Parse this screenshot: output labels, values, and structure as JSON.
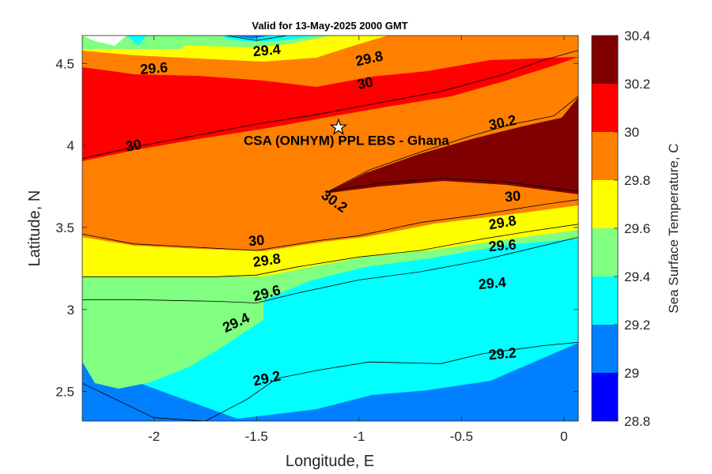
{
  "chart_data": {
    "type": "contour",
    "title": "Valid for 13-May-2025 2000 GMT",
    "xlabel": "Longitude, E",
    "ylabel": "Latitude, N",
    "xlim": [
      -2.35,
      0.07
    ],
    "ylim": [
      2.32,
      4.67
    ],
    "x_ticks": [
      -2,
      -1.5,
      -1,
      -0.5,
      0
    ],
    "x_tick_labels": [
      "-2",
      "-1.5",
      "-1",
      "-0.5",
      "0"
    ],
    "y_ticks": [
      2.5,
      3,
      3.5,
      4,
      4.5
    ],
    "y_tick_labels": [
      "2.5",
      "3",
      "3.5",
      "4",
      "4.5"
    ],
    "colorbar": {
      "label": "Sea Surface Temperature, C",
      "levels": [
        28.8,
        29,
        29.2,
        29.4,
        29.6,
        29.8,
        30,
        30.2,
        30.4
      ],
      "level_labels": [
        "28.8",
        "29",
        "29.2",
        "29.4",
        "29.6",
        "29.8",
        "30",
        "30.2",
        "30.4"
      ],
      "colors": [
        "#0000ff",
        "#0080ff",
        "#00ffff",
        "#80ff80",
        "#ffff00",
        "#ff8000",
        "#ff0000",
        "#800000"
      ]
    },
    "contours": [
      {
        "level": 29.0,
        "points": [
          [
            -1.65,
            4.67
          ],
          [
            -1.5,
            4.64
          ],
          [
            -1.35,
            4.67
          ]
        ]
      },
      {
        "level": 29.2,
        "points": [
          [
            -2.35,
            2.55
          ],
          [
            -2.0,
            2.34
          ],
          [
            -1.75,
            2.32
          ],
          [
            -1.55,
            2.45
          ],
          [
            -1.4,
            2.58
          ],
          [
            -1.2,
            2.63
          ],
          [
            -0.95,
            2.68
          ],
          [
            -0.6,
            2.67
          ],
          [
            -0.4,
            2.73
          ],
          [
            -0.1,
            2.78
          ],
          [
            0.07,
            2.8
          ]
        ]
      },
      {
        "level": 29.4,
        "points": [
          [
            -2.35,
            3.06
          ],
          [
            -2.1,
            3.06
          ],
          [
            -1.7,
            3.05
          ],
          [
            -1.5,
            3.04
          ],
          [
            -1.3,
            3.1
          ],
          [
            -1.0,
            3.18
          ],
          [
            -0.7,
            3.23
          ],
          [
            -0.4,
            3.3
          ],
          [
            -0.1,
            3.39
          ],
          [
            0.07,
            3.44
          ]
        ]
      },
      {
        "level": 29.6,
        "points": [
          [
            -2.35,
            3.2
          ],
          [
            -2.0,
            3.2
          ],
          [
            -1.7,
            3.2
          ],
          [
            -1.5,
            3.21
          ],
          [
            -1.3,
            3.26
          ],
          [
            -1.0,
            3.32
          ],
          [
            -0.7,
            3.36
          ],
          [
            -0.4,
            3.43
          ],
          [
            -0.15,
            3.48
          ],
          [
            0.07,
            3.52
          ]
        ]
      },
      {
        "level": 29.8,
        "points": [
          [
            -2.35,
            3.46
          ],
          [
            -2.1,
            3.4
          ],
          [
            -1.8,
            3.38
          ],
          [
            -1.5,
            3.36
          ],
          [
            -1.2,
            3.42
          ],
          [
            -1.0,
            3.45
          ],
          [
            -0.7,
            3.53
          ],
          [
            -0.4,
            3.58
          ],
          [
            -0.1,
            3.64
          ],
          [
            0.07,
            3.67
          ]
        ]
      },
      {
        "level": 30.0,
        "points": [
          [
            -2.35,
            3.92
          ],
          [
            -2.1,
            3.99
          ],
          [
            -1.8,
            4.06
          ],
          [
            -1.5,
            4.13
          ],
          [
            -1.2,
            4.19
          ],
          [
            -0.9,
            4.26
          ],
          [
            -0.6,
            4.33
          ],
          [
            -0.3,
            4.43
          ],
          [
            -0.1,
            4.52
          ],
          [
            0.07,
            4.58
          ]
        ]
      },
      {
        "level": 30.2,
        "points": [
          [
            -1.15,
            3.72
          ],
          [
            -0.95,
            3.85
          ],
          [
            -0.7,
            3.96
          ],
          [
            -0.45,
            4.06
          ],
          [
            -0.25,
            4.13
          ],
          [
            -0.05,
            4.18
          ],
          [
            0.07,
            4.3
          ],
          [
            0.07,
            3.72
          ],
          [
            -0.3,
            3.78
          ],
          [
            -0.6,
            3.8
          ],
          [
            -0.9,
            3.77
          ],
          [
            -1.15,
            3.72
          ]
        ]
      }
    ],
    "contour_labels": [
      {
        "text": "29.4",
        "x": -1.45,
        "y": 4.58,
        "angle": -5
      },
      {
        "text": "29.8",
        "x": -0.95,
        "y": 4.53,
        "angle": -12
      },
      {
        "text": "29.6",
        "x": -2.0,
        "y": 4.47,
        "angle": -5
      },
      {
        "text": "30",
        "x": -0.97,
        "y": 4.38,
        "angle": -12
      },
      {
        "text": "30",
        "x": -2.1,
        "y": 4.0,
        "angle": -10
      },
      {
        "text": "30.2",
        "x": -0.3,
        "y": 4.14,
        "angle": -12
      },
      {
        "text": "30.2",
        "x": -1.12,
        "y": 3.66,
        "angle": 35
      },
      {
        "text": "30",
        "x": -0.25,
        "y": 3.69,
        "angle": -5
      },
      {
        "text": "30",
        "x": -1.5,
        "y": 3.42,
        "angle": -5
      },
      {
        "text": "29.8",
        "x": -1.45,
        "y": 3.3,
        "angle": -8
      },
      {
        "text": "29.8",
        "x": -0.3,
        "y": 3.53,
        "angle": -10
      },
      {
        "text": "29.6",
        "x": -1.45,
        "y": 3.1,
        "angle": -15
      },
      {
        "text": "29.6",
        "x": -0.3,
        "y": 3.39,
        "angle": -5
      },
      {
        "text": "29.4",
        "x": -1.6,
        "y": 2.92,
        "angle": -25
      },
      {
        "text": "29.4",
        "x": -0.35,
        "y": 3.16,
        "angle": -5
      },
      {
        "text": "29.2",
        "x": -1.45,
        "y": 2.58,
        "angle": -12
      },
      {
        "text": "29.2",
        "x": -0.3,
        "y": 2.73,
        "angle": -5
      }
    ],
    "site": {
      "name": "CSA (ONHYM) PPL EBS  - Ghana",
      "x": -1.1,
      "y": 4.11
    }
  }
}
